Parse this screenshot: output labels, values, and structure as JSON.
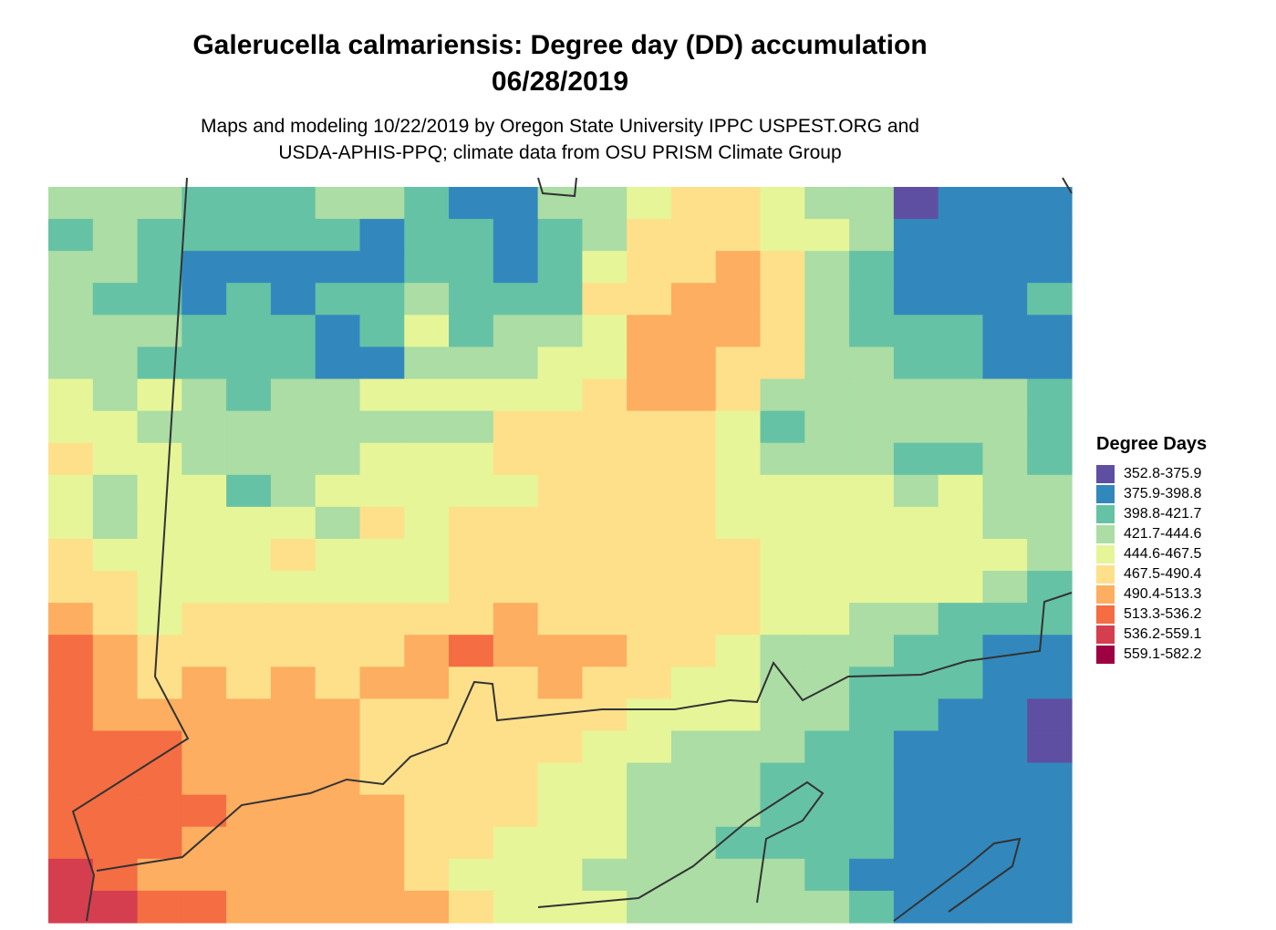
{
  "title_line1": "Galerucella calmariensis: Degree day (DD) accumulation",
  "title_line2": "06/28/2019",
  "subtitle_line1": "Maps and modeling 10/22/2019 by Oregon State University IPPC USPEST.ORG and",
  "subtitle_line2": "USDA-APHIS-PPQ; climate data from OSU PRISM Climate Group",
  "legend": {
    "title": "Degree Days",
    "items": [
      {
        "label": "352.8-375.9",
        "color": "#5E4FA2"
      },
      {
        "label": "375.9-398.8",
        "color": "#3288BD"
      },
      {
        "label": "398.8-421.7",
        "color": "#66C2A5"
      },
      {
        "label": "421.7-444.6",
        "color": "#ABDDA4"
      },
      {
        "label": "444.6-467.5",
        "color": "#E6F598"
      },
      {
        "label": "467.5-490.4",
        "color": "#FEE08B"
      },
      {
        "label": "490.4-513.3",
        "color": "#FDAE61"
      },
      {
        "label": "513.3-536.2",
        "color": "#F46D43"
      },
      {
        "label": "536.2-559.1",
        "color": "#D53E4F"
      },
      {
        "label": "559.1-582.2",
        "color": "#9E0142"
      }
    ]
  },
  "map_grid": [
    "44433344322445665441222",
    "34333332332346665542222",
    "44322222332356676432222",
    "43323233433366776432223",
    "44433323534457776433322",
    "44333322444557766443322",
    "54543445555567764444443",
    "55444444446666653444443",
    "65544445556666654443343",
    "54553455555666655554544",
    "54555546566666655555544",
    "65555655566666665555554",
    "66555555566666665555543",
    "76566666667666665544333",
    "87666666787776654443322",
    "87676767766766554433322",
    "87777776666665554433221",
    "88877776666655444332221",
    "88877776666554443332222",
    "88887777666554443332222",
    "88877777665554433332222",
    "98777777655544444322222",
    "99887777765554444432222"
  ],
  "map_colors": {
    "1": "#5E4FA2",
    "2": "#3288BD",
    "3": "#66C2A5",
    "4": "#ABDDA4",
    "5": "#E6F598",
    "6": "#FEE08B",
    "7": "#FDAE61",
    "8": "#F46D43",
    "9": "#D53E4F",
    "0": "#9E0142"
  }
}
